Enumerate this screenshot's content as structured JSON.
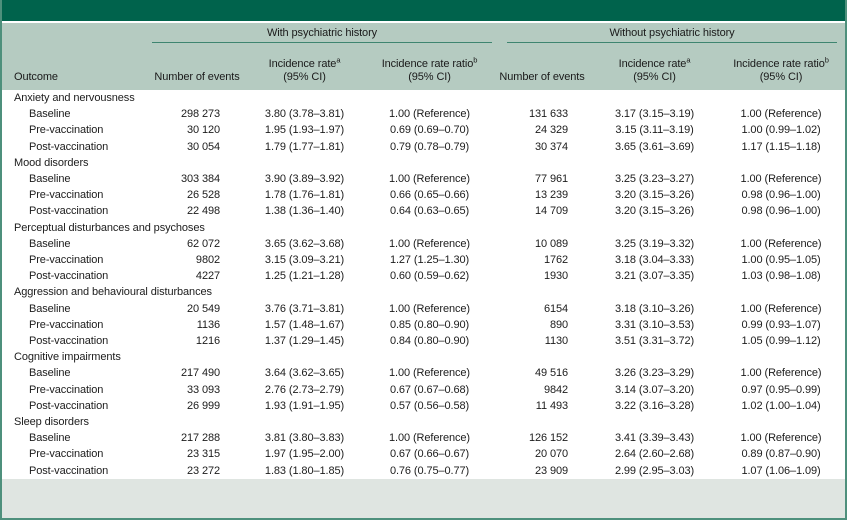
{
  "colors": {
    "bar-green": "#00634C",
    "header-sage": "#B5CBC1",
    "footer-sage": "#DFE5E1",
    "border-teal": "#4E907C",
    "rule-teal": "#3E8570",
    "text": "#1A1A1A"
  },
  "table": {
    "spanners": {
      "with": "With psychiatric history",
      "without": "Without psychiatric history"
    },
    "columns": {
      "outcome": "Outcome",
      "events": "Number of events",
      "rate_line1": "Incidence rate",
      "rate_sup": "a",
      "rate_line2": "(95% CI)",
      "ratio_line1": "Incidence rate ratio",
      "ratio_sup": "b",
      "ratio_line2": "(95% CI)"
    },
    "groups": [
      {
        "name": "Anxiety and nervousness",
        "rows": [
          {
            "label": "Baseline",
            "w_events": "298 273",
            "w_rate": "3.80 (3.78–3.81)",
            "w_ratio": "1.00 (Reference)",
            "wo_events": "131 633",
            "wo_rate": "3.17 (3.15–3.19)",
            "wo_ratio": "1.00 (Reference)"
          },
          {
            "label": "Pre-vaccination",
            "w_events": "30 120",
            "w_rate": "1.95 (1.93–1.97)",
            "w_ratio": "0.69 (0.69–0.70)",
            "wo_events": "24 329",
            "wo_rate": "3.15 (3.11–3.19)",
            "wo_ratio": "1.00 (0.99–1.02)"
          },
          {
            "label": "Post-vaccination",
            "w_events": "30 054",
            "w_rate": "1.79 (1.77–1.81)",
            "w_ratio": "0.79 (0.78–0.79)",
            "wo_events": "30 374",
            "wo_rate": "3.65 (3.61–3.69)",
            "wo_ratio": "1.17 (1.15–1.18)"
          }
        ]
      },
      {
        "name": "Mood disorders",
        "rows": [
          {
            "label": "Baseline",
            "w_events": "303 384",
            "w_rate": "3.90 (3.89–3.92)",
            "w_ratio": "1.00 (Reference)",
            "wo_events": "77 961",
            "wo_rate": "3.25 (3.23–3.27)",
            "wo_ratio": "1.00 (Reference)"
          },
          {
            "label": "Pre-vaccination",
            "w_events": "26 528",
            "w_rate": "1.78 (1.76–1.81)",
            "w_ratio": "0.66 (0.65–0.66)",
            "wo_events": "13 239",
            "wo_rate": "3.20 (3.15–3.26)",
            "wo_ratio": "0.98 (0.96–1.00)"
          },
          {
            "label": "Post-vaccination",
            "w_events": "22 498",
            "w_rate": "1.38 (1.36–1.40)",
            "w_ratio": "0.64 (0.63–0.65)",
            "wo_events": "14 709",
            "wo_rate": "3.20 (3.15–3.26)",
            "wo_ratio": "0.98 (0.96–1.00)"
          }
        ]
      },
      {
        "name": "Perceptual disturbances and psychoses",
        "rows": [
          {
            "label": "Baseline",
            "w_events": "62 072",
            "w_rate": "3.65 (3.62–3.68)",
            "w_ratio": "1.00 (Reference)",
            "wo_events": "10 089",
            "wo_rate": "3.25 (3.19–3.32)",
            "wo_ratio": "1.00 (Reference)"
          },
          {
            "label": "Pre-vaccination",
            "w_events": "9802",
            "w_rate": "3.15 (3.09–3.21)",
            "w_ratio": "1.27 (1.25–1.30)",
            "wo_events": "1762",
            "wo_rate": "3.18 (3.04–3.33)",
            "wo_ratio": "1.00 (0.95–1.05)"
          },
          {
            "label": "Post-vaccination",
            "w_events": "4227",
            "w_rate": "1.25 (1.21–1.28)",
            "w_ratio": "0.60 (0.59–0.62)",
            "wo_events": "1930",
            "wo_rate": "3.21 (3.07–3.35)",
            "wo_ratio": "1.03 (0.98–1.08)"
          }
        ]
      },
      {
        "name": "Aggression and behavioural disturbances",
        "rows": [
          {
            "label": "Baseline",
            "w_events": "20 549",
            "w_rate": "3.76 (3.71–3.81)",
            "w_ratio": "1.00 (Reference)",
            "wo_events": "6154",
            "wo_rate": "3.18 (3.10–3.26)",
            "wo_ratio": "1.00 (Reference)"
          },
          {
            "label": "Pre-vaccination",
            "w_events": "1136",
            "w_rate": "1.57 (1.48–1.67)",
            "w_ratio": "0.85 (0.80–0.90)",
            "wo_events": "890",
            "wo_rate": "3.31 (3.10–3.53)",
            "wo_ratio": "0.99 (0.93–1.07)"
          },
          {
            "label": "Post-vaccination",
            "w_events": "1216",
            "w_rate": "1.37 (1.29–1.45)",
            "w_ratio": "0.84 (0.80–0.90)",
            "wo_events": "1130",
            "wo_rate": "3.51 (3.31–3.72)",
            "wo_ratio": "1.05 (0.99–1.12)"
          }
        ]
      },
      {
        "name": "Cognitive impairments",
        "rows": [
          {
            "label": "Baseline",
            "w_events": "217 490",
            "w_rate": "3.64 (3.62–3.65)",
            "w_ratio": "1.00 (Reference)",
            "wo_events": "49 516",
            "wo_rate": "3.26 (3.23–3.29)",
            "wo_ratio": "1.00 (Reference)"
          },
          {
            "label": "Pre-vaccination",
            "w_events": "33 093",
            "w_rate": "2.76 (2.73–2.79)",
            "w_ratio": "0.67 (0.67–0.68)",
            "wo_events": "9842",
            "wo_rate": "3.14 (3.07–3.20)",
            "wo_ratio": "0.97 (0.95–0.99)"
          },
          {
            "label": "Post-vaccination",
            "w_events": "26 999",
            "w_rate": "1.93 (1.91–1.95)",
            "w_ratio": "0.57 (0.56–0.58)",
            "wo_events": "11 493",
            "wo_rate": "3.22 (3.16–3.28)",
            "wo_ratio": "1.02 (1.00–1.04)"
          }
        ]
      },
      {
        "name": "Sleep disorders",
        "rows": [
          {
            "label": "Baseline",
            "w_events": "217 288",
            "w_rate": "3.81 (3.80–3.83)",
            "w_ratio": "1.00 (Reference)",
            "wo_events": "126 152",
            "wo_rate": "3.41 (3.39–3.43)",
            "wo_ratio": "1.00 (Reference)"
          },
          {
            "label": "Pre-vaccination",
            "w_events": "23 315",
            "w_rate": "1.97 (1.95–2.00)",
            "w_ratio": "0.67 (0.66–0.67)",
            "wo_events": "20 070",
            "wo_rate": "2.64 (2.60–2.68)",
            "wo_ratio": "0.89 (0.87–0.90)"
          },
          {
            "label": "Post-vaccination",
            "w_events": "23 272",
            "w_rate": "1.83 (1.80–1.85)",
            "w_ratio": "0.76 (0.75–0.77)",
            "wo_events": "23 909",
            "wo_rate": "2.99 (2.95–3.03)",
            "wo_ratio": "1.07 (1.06–1.09)"
          }
        ]
      }
    ]
  }
}
